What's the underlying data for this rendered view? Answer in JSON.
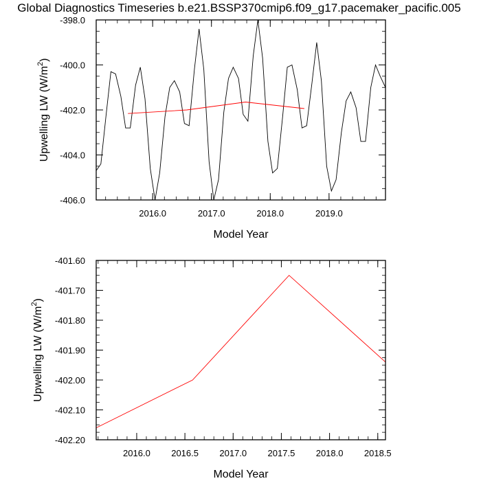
{
  "title": "Global Diagnostics Timeseries b.e21.BSSP370cmip6.f09_g17.pacemaker_pacific.005",
  "chart_data": [
    {
      "type": "line",
      "xlabel": "Model Year",
      "ylabel": "Upwelling LW (W/m",
      "ylabel_sup": "2",
      "ylabel_close": ")",
      "xlim": [
        2015.04,
        2019.96
      ],
      "ylim": [
        -406.0,
        -398.0
      ],
      "xticks": [
        2016.0,
        2017.0,
        2018.0,
        2019.0
      ],
      "xtick_labels": [
        "2016.0",
        "2017.0",
        "2018.0",
        "2019.0"
      ],
      "yticks": [
        -406.0,
        -404.0,
        -402.0,
        -400.0,
        -398.0
      ],
      "ytick_labels": [
        "-406.0",
        "-404.0",
        "-402.0",
        "-400.0",
        "-398.0"
      ],
      "series": [
        {
          "color": "#000000",
          "x": [
            2015.04,
            2015.12,
            2015.21,
            2015.29,
            2015.37,
            2015.46,
            2015.54,
            2015.62,
            2015.71,
            2015.79,
            2015.87,
            2015.96,
            2016.04,
            2016.12,
            2016.21,
            2016.29,
            2016.37,
            2016.46,
            2016.54,
            2016.62,
            2016.71,
            2016.79,
            2016.87,
            2016.96,
            2017.04,
            2017.12,
            2017.21,
            2017.29,
            2017.37,
            2017.46,
            2017.54,
            2017.62,
            2017.71,
            2017.79,
            2017.87,
            2017.96,
            2018.04,
            2018.12,
            2018.21,
            2018.29,
            2018.37,
            2018.46,
            2018.54,
            2018.62,
            2018.71,
            2018.79,
            2018.87,
            2018.96,
            2019.04,
            2019.12,
            2019.21,
            2019.29,
            2019.37,
            2019.46,
            2019.54,
            2019.62,
            2019.71,
            2019.79,
            2019.87,
            2019.96
          ],
          "y": [
            -404.7,
            -404.4,
            -402.2,
            -400.3,
            -400.4,
            -401.4,
            -402.8,
            -402.8,
            -400.9,
            -400.1,
            -401.5,
            -404.6,
            -406.0,
            -404.8,
            -402.3,
            -401.0,
            -400.7,
            -401.2,
            -402.6,
            -402.7,
            -400.2,
            -398.4,
            -400.2,
            -404.3,
            -406.0,
            -405.1,
            -402.1,
            -400.6,
            -400.1,
            -400.6,
            -402.2,
            -402.5,
            -399.6,
            -398.0,
            -399.7,
            -403.4,
            -404.8,
            -404.6,
            -402.3,
            -400.1,
            -400.0,
            -401.1,
            -402.8,
            -402.7,
            -400.8,
            -399.0,
            -400.7,
            -404.5,
            -405.6,
            -405.1,
            -403.0,
            -401.6,
            -401.2,
            -401.9,
            -403.4,
            -403.4,
            -401.0,
            -400.0,
            -400.5,
            -401.0
          ]
        },
        {
          "color": "#ff0000",
          "x": [
            2015.58,
            2016.58,
            2017.58,
            2018.58
          ],
          "y": [
            -402.16,
            -402.0,
            -401.65,
            -401.94
          ]
        }
      ]
    },
    {
      "type": "line",
      "xlabel": "Model Year",
      "ylabel": "Upwelling LW (W/m",
      "ylabel_sup": "2",
      "ylabel_close": ")",
      "xlim": [
        2015.58,
        2018.58
      ],
      "ylim": [
        -402.2,
        -401.6
      ],
      "xticks": [
        2016.0,
        2016.5,
        2017.0,
        2017.5,
        2018.0,
        2018.5
      ],
      "xtick_labels": [
        "2016.0",
        "2016.5",
        "2017.0",
        "2017.5",
        "2018.0",
        "2018.5"
      ],
      "yticks": [
        -402.2,
        -402.1,
        -402.0,
        -401.9,
        -401.8,
        -401.7,
        -401.6
      ],
      "ytick_labels": [
        "-402.20",
        "-402.10",
        "-402.00",
        "-401.90",
        "-401.80",
        "-401.70",
        "-401.60"
      ],
      "series": [
        {
          "color": "#ff0000",
          "x": [
            2015.58,
            2016.58,
            2017.58,
            2018.58
          ],
          "y": [
            -402.16,
            -402.0,
            -401.65,
            -401.94
          ]
        }
      ]
    }
  ]
}
